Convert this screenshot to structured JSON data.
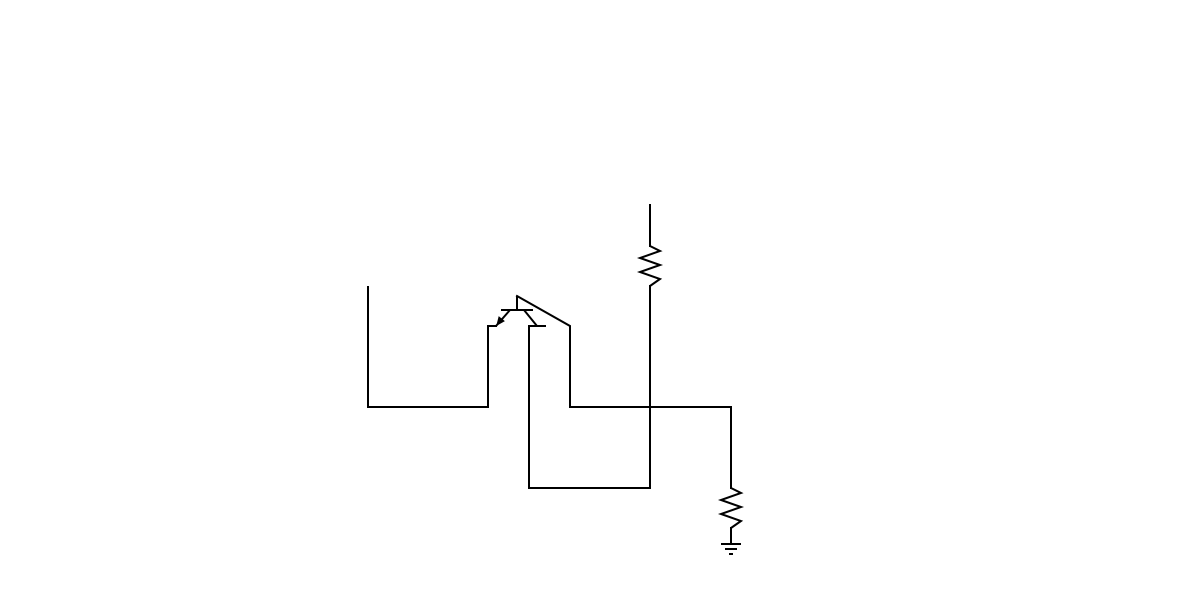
{
  "diagram": {
    "kind": "circuit-schematic",
    "components": [
      {
        "id": "Q1",
        "type": "transistor-pnp",
        "icon": "transistor-icon"
      },
      {
        "id": "R1",
        "type": "resistor",
        "icon": "resistor-icon"
      },
      {
        "id": "R2",
        "type": "resistor",
        "icon": "resistor-icon"
      },
      {
        "id": "GND",
        "type": "ground",
        "icon": "ground-icon"
      }
    ],
    "stroke_color": "#000000",
    "background_color": "#ffffff"
  }
}
